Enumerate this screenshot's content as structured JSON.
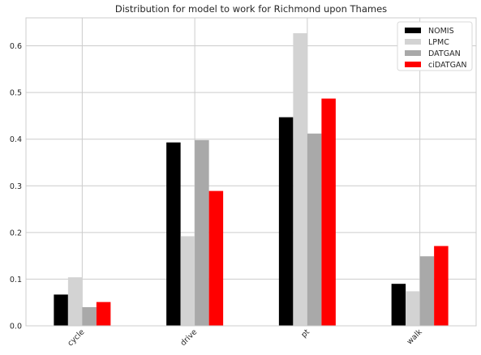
{
  "chart_data": {
    "type": "bar",
    "title": "Distribution for model to work for Richmond upon Thames",
    "xlabel": "",
    "ylabel": "",
    "categories": [
      "cycle",
      "drive",
      "pt",
      "walk"
    ],
    "series": [
      {
        "name": "NOMIS",
        "color": "#000000",
        "values": [
          0.067,
          0.393,
          0.447,
          0.09
        ]
      },
      {
        "name": "LPMC",
        "color": "#d3d3d3",
        "values": [
          0.104,
          0.192,
          0.627,
          0.074
        ]
      },
      {
        "name": "DATGAN",
        "color": "#a9a9a9",
        "values": [
          0.04,
          0.398,
          0.412,
          0.149
        ]
      },
      {
        "name": "ciDATGAN",
        "color": "#ff0000",
        "values": [
          0.051,
          0.289,
          0.487,
          0.171
        ]
      }
    ],
    "ylim": [
      0,
      0.66
    ],
    "yticks": [
      "0.0",
      "0.1",
      "0.2",
      "0.3",
      "0.4",
      "0.5",
      "0.6"
    ],
    "grid": true,
    "legend_position": "top-right"
  }
}
